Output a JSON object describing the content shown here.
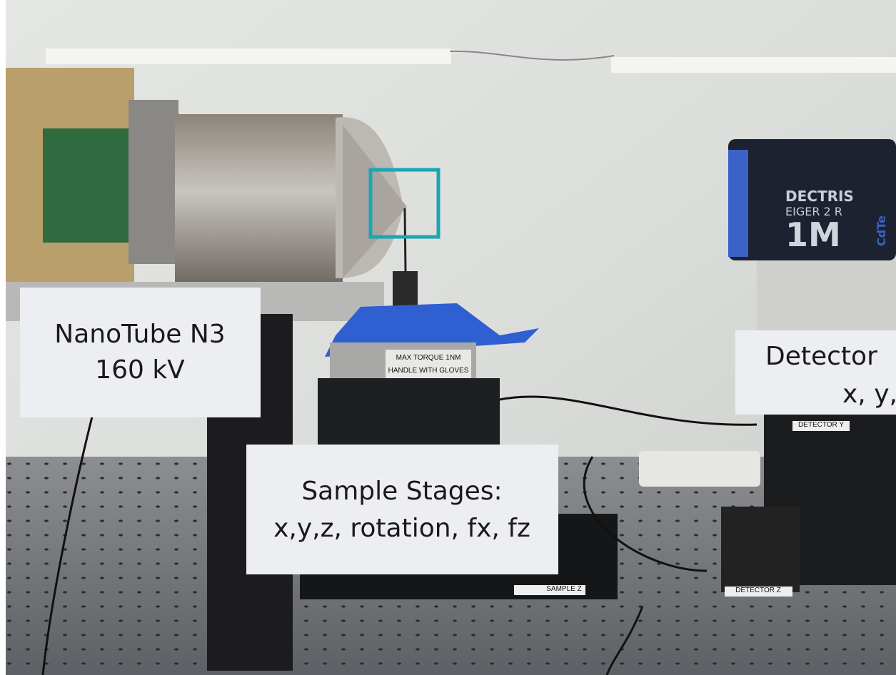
{
  "labels": {
    "source": {
      "line1": "NanoTube N3",
      "line2": "160 kV"
    },
    "sample": {
      "line1": "Sample Stages:",
      "line2": "x,y,z, rotation, fx, fz"
    },
    "detector": {
      "line1": "Detector",
      "line2": "x, y,"
    }
  },
  "photo_text": {
    "detector_brand": "DECTRIS",
    "detector_model": "EIGER 2 R",
    "detector_size": "1M",
    "detector_sensor": "CdTe",
    "stage_warning_1": "MAX TORQUE 1NM",
    "stage_warning_2": "HANDLE WITH GLOVES",
    "sample_z": "SAMPLE Z",
    "detector_z": "DETECTOR Z",
    "detector_y": "DETECTOR Y"
  }
}
